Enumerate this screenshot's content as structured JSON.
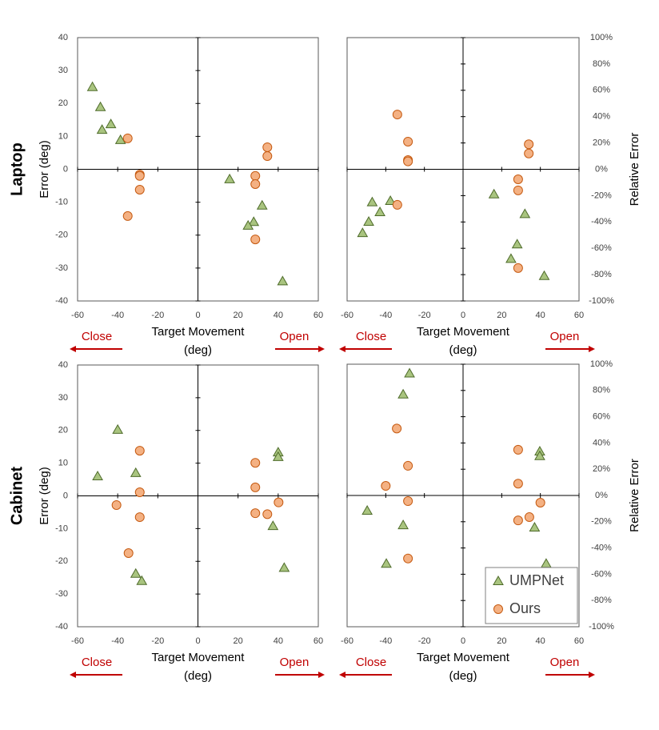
{
  "chart_data": [
    {
      "type": "scatter",
      "group": "Laptop",
      "y_label": "Error (deg)",
      "x_label": [
        "Target Movement",
        "(deg)"
      ],
      "annotations": [
        "Close",
        "Open"
      ],
      "xlim": [
        -60,
        60
      ],
      "xticks": [
        -60,
        -40,
        -20,
        0,
        20,
        40,
        60
      ],
      "ylim": [
        -40,
        40
      ],
      "yticks": [
        -40,
        -30,
        -20,
        -10,
        0,
        10,
        20,
        30,
        40
      ],
      "series": [
        {
          "marker": "triangle",
          "color": "#a9c47f",
          "x": [
            -52.6,
            -48.6,
            -43.4,
            -47.8,
            -38.6,
            15.8,
            32,
            27.8,
            25,
            42.2
          ],
          "y": [
            25,
            18.9,
            13.7,
            12,
            8.9,
            -3,
            -11,
            -16,
            -17.1,
            -34
          ]
        },
        {
          "marker": "circle",
          "color": "#f4b183",
          "x": [
            -35,
            -29,
            -29,
            -29,
            -35,
            34.6,
            34.6,
            28.6,
            28.6,
            28.6
          ],
          "y": [
            9.4,
            -1.6,
            -2,
            -6.2,
            -14.2,
            6.7,
            4,
            -2,
            -4.5,
            -21.3
          ]
        }
      ]
    },
    {
      "type": "scatter",
      "y_label": "Relative Error",
      "x_label": [
        "Target Movement",
        "(deg)"
      ],
      "annotations": [
        "Close",
        "Open"
      ],
      "xlim": [
        -60,
        60
      ],
      "xticks": [
        -60,
        -40,
        -20,
        0,
        20,
        40,
        60
      ],
      "ylim": [
        -100,
        100
      ],
      "yticks": [
        {
          "value": -100,
          "label": "-100%"
        },
        {
          "value": -80,
          "label": "-80%"
        },
        {
          "value": -60,
          "label": "-60%"
        },
        {
          "value": -40,
          "label": "-40%"
        },
        {
          "value": -20,
          "label": "-20%"
        },
        {
          "value": 0,
          "label": "0%"
        },
        {
          "value": 20,
          "label": "20%"
        },
        {
          "value": 40,
          "label": "40%"
        },
        {
          "value": 60,
          "label": "60%"
        },
        {
          "value": 80,
          "label": "80%"
        },
        {
          "value": 100,
          "label": "100%"
        }
      ],
      "series": [
        {
          "marker": "triangle",
          "color": "#a9c47f",
          "x": [
            -47,
            -48.8,
            -52,
            -43,
            -37.6,
            16,
            32,
            28,
            24.8,
            42
          ],
          "y": [
            -25,
            -39.8,
            -48.4,
            -32.5,
            -24,
            -19,
            -34,
            -57,
            -68,
            -81
          ]
        },
        {
          "marker": "circle",
          "color": "#f4b183",
          "x": [
            -34,
            -28.5,
            -28.5,
            -28.5,
            -34,
            34,
            34,
            28.5,
            28.5,
            28.5
          ],
          "y": [
            41.6,
            21,
            7,
            6,
            -27,
            19,
            12,
            -7.6,
            -16,
            -75
          ]
        }
      ]
    },
    {
      "type": "scatter",
      "group": "Cabinet",
      "y_label": "Error (deg)",
      "x_label": [
        "Target Movement",
        "(deg)"
      ],
      "annotations": [
        "Close",
        "Open"
      ],
      "xlim": [
        -60,
        60
      ],
      "xticks": [
        -60,
        -40,
        -20,
        0,
        20,
        40,
        60
      ],
      "ylim": [
        -40,
        40
      ],
      "yticks": [
        -40,
        -30,
        -20,
        -10,
        0,
        10,
        20,
        30,
        40
      ],
      "series": [
        {
          "marker": "triangle",
          "color": "#a9c47f",
          "x": [
            -40,
            -50,
            -31,
            -31,
            -28,
            40,
            40,
            37.4,
            43
          ],
          "y": [
            20.2,
            6,
            7,
            -23.8,
            -26,
            13.3,
            11.9,
            -9.2,
            -22
          ]
        },
        {
          "marker": "circle",
          "color": "#f4b183",
          "x": [
            -29,
            -29,
            -29,
            -40.6,
            -34.6,
            28.6,
            28.6,
            28.6,
            34.6,
            40.2
          ],
          "y": [
            13.8,
            1.1,
            -6.5,
            -2.8,
            -17.5,
            10.1,
            2.6,
            -5.3,
            -5.6,
            -2
          ]
        }
      ]
    },
    {
      "type": "scatter",
      "y_label": "Relative Error",
      "x_label": [
        "Target Movement",
        "(deg)"
      ],
      "annotations": [
        "Close",
        "Open"
      ],
      "xlim": [
        -60,
        60
      ],
      "xticks": [
        -60,
        -40,
        -20,
        0,
        20,
        40,
        60
      ],
      "ylim": [
        -100,
        100
      ],
      "yticks": [
        {
          "value": -100,
          "label": "-100%"
        },
        {
          "value": -80,
          "label": "-80%"
        },
        {
          "value": -60,
          "label": "-60%"
        },
        {
          "value": -40,
          "label": "-40%"
        },
        {
          "value": -20,
          "label": "-20%"
        },
        {
          "value": 0,
          "label": "0%"
        },
        {
          "value": 20,
          "label": "20%"
        },
        {
          "value": 40,
          "label": "40%"
        },
        {
          "value": 60,
          "label": "60%"
        },
        {
          "value": 80,
          "label": "80%"
        },
        {
          "value": 100,
          "label": "100%"
        }
      ],
      "legend": "lower right",
      "series": [
        {
          "name": "UMPNet",
          "marker": "triangle",
          "color": "#a9c47f",
          "x": [
            -27.7,
            -31,
            -49.6,
            -31,
            -39.7,
            39.7,
            39.7,
            37,
            43
          ],
          "y": [
            93,
            77,
            -11.6,
            -22.6,
            -52,
            33.5,
            30,
            -24.4,
            -52
          ]
        },
        {
          "name": "Ours",
          "marker": "circle",
          "color": "#f4b183",
          "x": [
            -34.3,
            -28.5,
            -40,
            -28.5,
            -28.5,
            28.5,
            28.5,
            40,
            34.3,
            28.5
          ],
          "y": [
            51,
            22.6,
            7.3,
            -4.3,
            -48,
            34.8,
            9,
            -5.5,
            -16.5,
            -19
          ]
        }
      ]
    }
  ]
}
